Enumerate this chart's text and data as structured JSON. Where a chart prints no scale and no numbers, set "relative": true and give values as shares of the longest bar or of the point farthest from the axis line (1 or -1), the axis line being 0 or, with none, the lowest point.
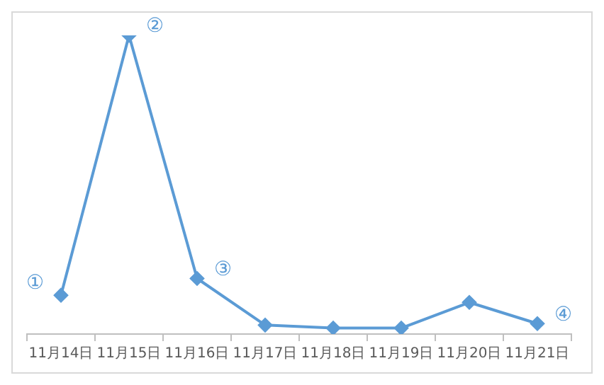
{
  "chart_data": {
    "type": "line",
    "relative": true,
    "categories": [
      "11月14日",
      "11月15日",
      "11月16日",
      "11月17日",
      "11月18日",
      "11月19日",
      "11月20日",
      "11月21日"
    ],
    "series": [
      {
        "color": "#5b9bd5",
        "values": [
          0.13,
          1,
          0.186,
          0.03,
          0.02,
          0.02,
          0.106,
          0.035
        ]
      }
    ],
    "marker": "diamond",
    "line_style": "solid",
    "grid": false,
    "legend": false,
    "annotations": [
      {
        "text": "①",
        "x": "11月14日",
        "y": 0.13
      },
      {
        "text": "②",
        "x": "11月15日",
        "y": 1
      },
      {
        "text": "③",
        "x": "11月16日",
        "y": 0.186
      },
      {
        "text": "④",
        "x": "11月21日",
        "y": 0.035
      }
    ]
  }
}
